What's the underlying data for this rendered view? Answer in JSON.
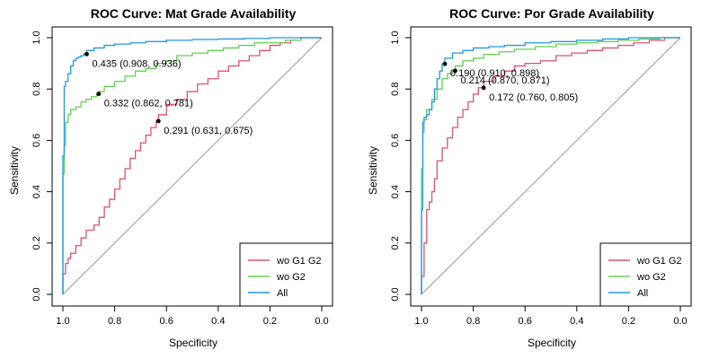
{
  "chart_data": [
    {
      "type": "line",
      "title": "ROC Curve: Mat Grade Availability",
      "xlabel": "Specificity",
      "ylabel": "Sensitivity",
      "xlim": [
        1.0,
        0.0
      ],
      "ylim": [
        0.0,
        1.0
      ],
      "x_reversed": true,
      "xticks": [
        "1.0",
        "0.8",
        "0.6",
        "0.4",
        "0.2",
        "0.0"
      ],
      "yticks": [
        "0.0",
        "0.2",
        "0.4",
        "0.6",
        "0.8",
        "1.0"
      ],
      "grid": false,
      "legend": "bottom-right",
      "series": [
        {
          "name": "wo G1 G2",
          "color": "#df536b",
          "x": [
            1.0,
            1.0,
            0.99,
            0.98,
            0.97,
            0.95,
            0.93,
            0.91,
            0.88,
            0.86,
            0.84,
            0.82,
            0.8,
            0.78,
            0.76,
            0.74,
            0.72,
            0.7,
            0.68,
            0.66,
            0.64,
            0.631,
            0.6,
            0.56,
            0.52,
            0.48,
            0.44,
            0.4,
            0.36,
            0.32,
            0.28,
            0.24,
            0.2,
            0.16,
            0.12,
            0.08,
            0.04,
            0.0
          ],
          "y": [
            0.0,
            0.03,
            0.08,
            0.12,
            0.14,
            0.16,
            0.19,
            0.22,
            0.25,
            0.27,
            0.3,
            0.34,
            0.37,
            0.41,
            0.45,
            0.49,
            0.53,
            0.56,
            0.59,
            0.62,
            0.65,
            0.675,
            0.7,
            0.74,
            0.76,
            0.79,
            0.82,
            0.84,
            0.87,
            0.89,
            0.91,
            0.93,
            0.95,
            0.97,
            0.98,
            0.99,
            1.0,
            1.0
          ]
        },
        {
          "name": "wo G2",
          "color": "#61d04f",
          "x": [
            1.0,
            0.995,
            0.99,
            0.98,
            0.97,
            0.95,
            0.93,
            0.91,
            0.89,
            0.87,
            0.862,
            0.84,
            0.8,
            0.76,
            0.72,
            0.68,
            0.64,
            0.6,
            0.56,
            0.5,
            0.44,
            0.38,
            0.32,
            0.26,
            0.2,
            0.14,
            0.08,
            0.02,
            0.0
          ],
          "y": [
            0.0,
            0.47,
            0.58,
            0.67,
            0.7,
            0.72,
            0.73,
            0.75,
            0.76,
            0.77,
            0.781,
            0.79,
            0.81,
            0.83,
            0.85,
            0.87,
            0.88,
            0.9,
            0.91,
            0.93,
            0.94,
            0.95,
            0.96,
            0.97,
            0.98,
            0.98,
            0.99,
            1.0,
            1.0
          ]
        },
        {
          "name": "All",
          "color": "#2297e6",
          "x": [
            1.0,
            0.995,
            0.99,
            0.98,
            0.97,
            0.96,
            0.95,
            0.94,
            0.93,
            0.92,
            0.908,
            0.88,
            0.84,
            0.8,
            0.74,
            0.68,
            0.6,
            0.5,
            0.4,
            0.3,
            0.2,
            0.1,
            0.0
          ],
          "y": [
            0.0,
            0.54,
            0.81,
            0.83,
            0.86,
            0.89,
            0.91,
            0.92,
            0.925,
            0.93,
            0.936,
            0.95,
            0.96,
            0.97,
            0.975,
            0.98,
            0.985,
            0.99,
            0.993,
            0.995,
            0.997,
            1.0,
            1.0
          ]
        }
      ],
      "annotations": [
        {
          "label": "0.291 (0.631, 0.675)",
          "x": 0.631,
          "y": 0.675
        },
        {
          "label": "0.332 (0.862, 0.781)",
          "x": 0.862,
          "y": 0.781
        },
        {
          "label": "0.435 (0.908, 0.936)",
          "x": 0.908,
          "y": 0.936
        }
      ]
    },
    {
      "type": "line",
      "title": "ROC Curve: Por Grade Availability",
      "xlabel": "Specificity",
      "ylabel": "Sensitivity",
      "xlim": [
        1.0,
        0.0
      ],
      "ylim": [
        0.0,
        1.0
      ],
      "x_reversed": true,
      "xticks": [
        "1.0",
        "0.8",
        "0.6",
        "0.4",
        "0.2",
        "0.0"
      ],
      "yticks": [
        "0.0",
        "0.2",
        "0.4",
        "0.6",
        "0.8",
        "1.0"
      ],
      "grid": false,
      "legend": "bottom-right",
      "series": [
        {
          "name": "wo G1 G2",
          "color": "#df536b",
          "x": [
            1.0,
            0.99,
            0.98,
            0.97,
            0.96,
            0.95,
            0.94,
            0.92,
            0.9,
            0.88,
            0.86,
            0.84,
            0.82,
            0.8,
            0.78,
            0.76,
            0.72,
            0.68,
            0.64,
            0.6,
            0.54,
            0.48,
            0.42,
            0.36,
            0.3,
            0.24,
            0.18,
            0.12,
            0.06,
            0.0
          ],
          "y": [
            0.0,
            0.07,
            0.2,
            0.33,
            0.36,
            0.4,
            0.45,
            0.52,
            0.57,
            0.61,
            0.65,
            0.69,
            0.72,
            0.75,
            0.78,
            0.805,
            0.83,
            0.85,
            0.87,
            0.89,
            0.9,
            0.91,
            0.93,
            0.94,
            0.95,
            0.96,
            0.97,
            0.98,
            0.99,
            1.0
          ]
        },
        {
          "name": "wo G2",
          "color": "#61d04f",
          "x": [
            1.0,
            0.995,
            0.99,
            0.98,
            0.96,
            0.94,
            0.92,
            0.9,
            0.88,
            0.87,
            0.84,
            0.8,
            0.76,
            0.7,
            0.64,
            0.56,
            0.48,
            0.4,
            0.32,
            0.24,
            0.16,
            0.08,
            0.0
          ],
          "y": [
            0.0,
            0.49,
            0.63,
            0.68,
            0.72,
            0.76,
            0.8,
            0.84,
            0.86,
            0.871,
            0.89,
            0.91,
            0.92,
            0.935,
            0.945,
            0.955,
            0.965,
            0.975,
            0.98,
            0.985,
            0.99,
            0.995,
            1.0
          ]
        },
        {
          "name": "All",
          "color": "#2297e6",
          "x": [
            1.0,
            0.995,
            0.99,
            0.98,
            0.97,
            0.96,
            0.95,
            0.94,
            0.93,
            0.92,
            0.91,
            0.88,
            0.84,
            0.8,
            0.74,
            0.68,
            0.6,
            0.5,
            0.4,
            0.3,
            0.2,
            0.1,
            0.0
          ],
          "y": [
            0.0,
            0.33,
            0.67,
            0.69,
            0.7,
            0.72,
            0.75,
            0.8,
            0.84,
            0.87,
            0.898,
            0.92,
            0.94,
            0.95,
            0.96,
            0.965,
            0.97,
            0.98,
            0.985,
            0.99,
            0.995,
            1.0,
            1.0
          ]
        }
      ],
      "annotations": [
        {
          "label": "0.190 (0.910, 0.898)",
          "x": 0.91,
          "y": 0.898
        },
        {
          "label": "0.214 (0.870, 0.871)",
          "x": 0.87,
          "y": 0.871
        },
        {
          "label": "0.172 (0.760, 0.805)",
          "x": 0.76,
          "y": 0.805
        }
      ]
    }
  ]
}
